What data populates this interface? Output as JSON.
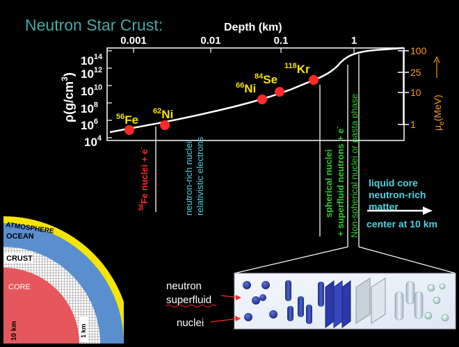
{
  "title": "Neutron Star Crust:",
  "depth_axis": {
    "label": "Depth (km)",
    "ticks": [
      "0.001",
      "0.01",
      "0.1",
      "1"
    ]
  },
  "density_axis": {
    "label": "ρ(g/cm",
    "label_exp": "3",
    "label_close": ")",
    "ticks": [
      {
        "base": "10",
        "exp": "14"
      },
      {
        "base": "10",
        "exp": "12"
      },
      {
        "base": "10",
        "exp": "10"
      },
      {
        "base": "10",
        "exp": "8"
      },
      {
        "base": "10",
        "exp": "6"
      },
      {
        "base": "10",
        "exp": "4"
      }
    ]
  },
  "mu_axis": {
    "label_main": "μ",
    "label_sub": "e",
    "label_unit": "(MeV)",
    "ticks": [
      "100",
      "25",
      "10",
      "1"
    ],
    "color": "#ff9b1a"
  },
  "nuclei": [
    {
      "mass": "56",
      "symbol": "Fe"
    },
    {
      "mass": "62",
      "symbol": "Ni"
    },
    {
      "mass": "66",
      "symbol": "Ni"
    },
    {
      "mass": "84",
      "symbol": "Se"
    },
    {
      "mass": "118",
      "symbol": "Kr"
    }
  ],
  "regions": {
    "fe_nuclei": {
      "mass": "56",
      "text": "Fe nuclei + e",
      "sup": "-"
    },
    "neutron_rich": {
      "line1": "neutron-rich nuclei",
      "line2": "relativistic electrons"
    },
    "spherical": {
      "line1": "spherical nuclei",
      "line2": "+ superfluid neutrons + e",
      "sup": "-"
    },
    "nonspherical": "Non-spherical nuclei or pasta phase",
    "liquid_core": {
      "line1": "liquid core",
      "line2": "neutron-rich",
      "line3": "matter"
    },
    "center": "center at 10 km"
  },
  "star_layers": {
    "atmosphere": "ATMOSPHERE",
    "ocean": "OCEAN",
    "crust": "CRUST",
    "core": "CORE",
    "scale_10km": "10 km",
    "scale_1km": "1 km"
  },
  "legend": {
    "neutron": "neutron",
    "superfluid": "superfluid",
    "nuclei": "nuclei"
  },
  "colors": {
    "title": "#4aa7a7",
    "red": "#ff2a2a",
    "yellow": "#f5e500",
    "cyan": "#4ed6e6",
    "green": "#2ecf2e",
    "ocean": "#5a8fcf",
    "core": "#e5575c"
  }
}
